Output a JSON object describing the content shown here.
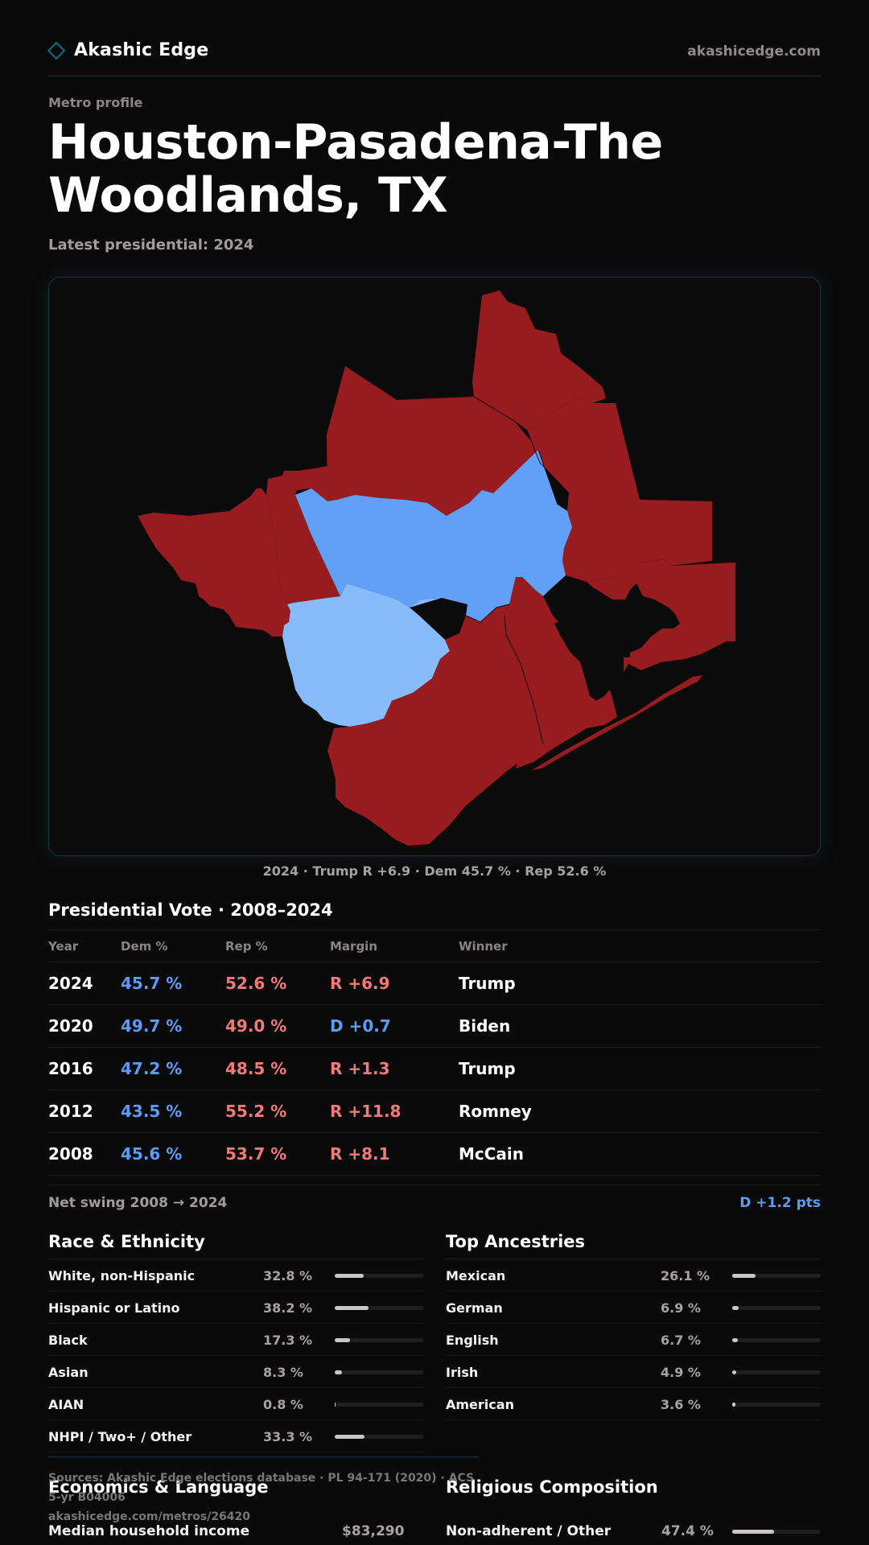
{
  "brand": {
    "name": "Akashic Edge",
    "site": "akashicedge.com"
  },
  "header": {
    "kicker": "Metro profile",
    "title": "Houston-Pasadena-The Woodlands, TX",
    "subtitle": "Latest presidential: 2024"
  },
  "map": {
    "caption": "2024 · Trump R +6.9 · Dem 45.7 % · Rep 52.6 %",
    "colors": {
      "rep": "#971b1f",
      "dem": "#62a0f7",
      "dem_light": "#88bbfa",
      "water": "#0c0b0c",
      "border": "#0f3a46"
    }
  },
  "vote_table": {
    "title": "Presidential Vote · 2008–2024",
    "headers": [
      "Year",
      "Dem %",
      "Rep %",
      "Margin",
      "Winner"
    ],
    "rows": [
      {
        "year": "2024",
        "dem": "45.7 %",
        "rep": "52.6 %",
        "margin": "R +6.9",
        "winner": "Trump"
      },
      {
        "year": "2020",
        "dem": "49.7 %",
        "rep": "49.0 %",
        "margin": "D +0.7",
        "winner": "Biden"
      },
      {
        "year": "2016",
        "dem": "47.2 %",
        "rep": "48.5 %",
        "margin": "R +1.3",
        "winner": "Trump"
      },
      {
        "year": "2012",
        "dem": "43.5 %",
        "rep": "55.2 %",
        "margin": "R +11.8",
        "winner": "Romney"
      },
      {
        "year": "2008",
        "dem": "45.6 %",
        "rep": "53.7 %",
        "margin": "R +8.1",
        "winner": "McCain"
      }
    ],
    "swing_label": "Net swing 2008 → 2024",
    "swing_value": "D +1.2 pts"
  },
  "race": {
    "title": "Race & Ethnicity",
    "rows": [
      {
        "label": "White, non-Hispanic",
        "pct": "32.8 %",
        "value": 32.8
      },
      {
        "label": "Hispanic or Latino",
        "pct": "38.2 %",
        "value": 38.2
      },
      {
        "label": "Black",
        "pct": "17.3 %",
        "value": 17.3
      },
      {
        "label": "Asian",
        "pct": "8.3 %",
        "value": 8.3
      },
      {
        "label": "AIAN",
        "pct": "0.8 %",
        "value": 0.8
      },
      {
        "label": "NHPI / Two+ / Other",
        "pct": "33.3 %",
        "value": 33.3
      }
    ]
  },
  "ancestry": {
    "title": "Top Ancestries",
    "rows": [
      {
        "label": "Mexican",
        "pct": "26.1 %",
        "value": 26.1
      },
      {
        "label": "German",
        "pct": "6.9 %",
        "value": 6.9
      },
      {
        "label": "English",
        "pct": "6.7 %",
        "value": 6.7
      },
      {
        "label": "Irish",
        "pct": "4.9 %",
        "value": 4.9
      },
      {
        "label": "American",
        "pct": "3.6 %",
        "value": 3.6
      }
    ]
  },
  "sources": {
    "line1": "Sources: Akashic Edge elections database · PL 94-171 (2020) · ACS 5-yr B04006",
    "line2": "akashicedge.com/metros/26420"
  },
  "economics": {
    "title": "Economics & Language",
    "first_label": "Median household income",
    "first_value": "$83,290"
  },
  "religion": {
    "title": "Religious Composition",
    "first_label": "Non-adherent / Other",
    "first_pct": "47.4 %",
    "first_value": 47.4
  }
}
